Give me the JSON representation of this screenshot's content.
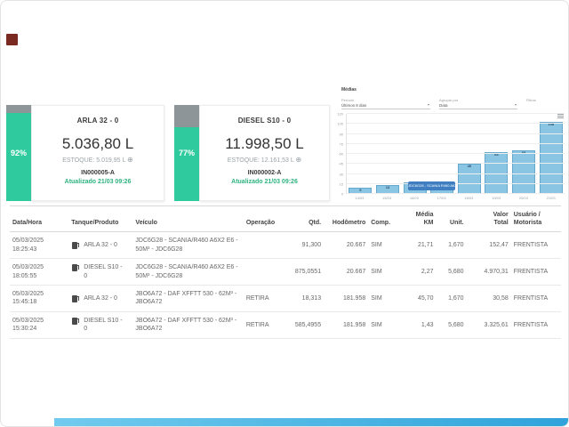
{
  "corner_marker": {
    "color": "#7b2a22"
  },
  "cards": [
    {
      "title": "ARLA 32 - 0",
      "percent": 92,
      "percent_label": "92%",
      "value": "5.036,80 L",
      "stock_label": "ESTOQUE:",
      "stock_value": "5.019,95 L",
      "stock_icon": "⊕",
      "code": "IN000005-A",
      "updated": "Atualizado 21/03 09:26",
      "gauge_color": "#2fcb9e",
      "gauge_empty_color": "#8e9598"
    },
    {
      "title": "DIESEL S10 - 0",
      "percent": 77,
      "percent_label": "77%",
      "value": "11.998,50 L",
      "stock_label": "ESTOQUE:",
      "stock_value": "12.161,53 L",
      "stock_icon": "⊕",
      "code": "IN000002-A",
      "updated": "Atualizado 21/03 09:26",
      "gauge_color": "#2fcb9e",
      "gauge_empty_color": "#8e9598"
    }
  ],
  "chart": {
    "title": "Médias",
    "filters": [
      {
        "label": "Período",
        "value": "Últimos 8 dias",
        "arrow": "▾"
      },
      {
        "label": "Agrupar por",
        "value": "Data",
        "arrow": "▾"
      }
    ],
    "extra_label": "Filtros",
    "highlight_badge": "JDC6G28 - SCANIA R460 A6X",
    "bar_color": "#8ac6e4",
    "bar_border_color": "#64a9cc",
    "badge_color": "#3f7fc1"
  },
  "chart_data": {
    "type": "bar",
    "categories": [
      "14/03",
      "15/03",
      "16/03",
      "17/03",
      "18/03",
      "19/03",
      "20/03",
      "21/03"
    ],
    "values": [
      9,
      13,
      18,
      17,
      45,
      63,
      65,
      108
    ],
    "title": "Médias",
    "xlabel": "",
    "ylabel": "",
    "ylim": [
      0,
      120
    ],
    "yticks": [
      0,
      15,
      30,
      45,
      60,
      75,
      90,
      105,
      120
    ],
    "grid": true,
    "legend": false
  },
  "table": {
    "columns": [
      "Data/Hora",
      "Tanque/Produto",
      "Veículo",
      "Operação",
      "Qtd.",
      "Hodômetro",
      "Comp.",
      "Média KM",
      "Unit.",
      "Valor Total",
      "Usuário / Motorista"
    ],
    "rows": [
      {
        "date": "05/03/2025",
        "time": "18:25:43",
        "product": "ARLA 32 - 0",
        "vehicle": "JDC6G28 - SCANIA/R460 A6X2 E6 - 50M³ - JDC6G28",
        "operation": "",
        "qty": "91,300",
        "odometer": "20.667",
        "comp": "SIM",
        "avg_km": "21,71",
        "unit": "1,670",
        "total": "152,47",
        "user": "FRENTISTA"
      },
      {
        "date": "05/03/2025",
        "time": "18:05:55",
        "product": "DIESEL S10 - 0",
        "vehicle": "JDC6G28 - SCANIA/R460 A6X2 E6 - 50M³ - JDC6G28",
        "operation": "",
        "qty": "875,0551",
        "odometer": "20.667",
        "comp": "SIM",
        "avg_km": "2,27",
        "unit": "5,680",
        "total": "4.970,31",
        "user": "FRENTISTA"
      },
      {
        "date": "05/03/2025",
        "time": "15:45:18",
        "product": "ARLA 32 - 0",
        "vehicle": "JBO6A72 - DAF XFFTT 530 - 62M³ - JBO6A72",
        "operation": "RETIRA",
        "qty": "18,313",
        "odometer": "181.958",
        "comp": "SIM",
        "avg_km": "45,70",
        "unit": "1,670",
        "total": "30,58",
        "user": "FRENTISTA"
      },
      {
        "date": "05/03/2025",
        "time": "15:30:24",
        "product": "DIESEL S10 - 0",
        "vehicle": "JBO6A72 - DAF XFFTT 530 - 62M³ - JBO6A72",
        "operation": "RETIRA",
        "qty": "585,4955",
        "odometer": "181.958",
        "comp": "SIM",
        "avg_km": "1,43",
        "unit": "5,680",
        "total": "3.325,61",
        "user": "FRENTISTA"
      }
    ]
  },
  "footer": {
    "bar_color_start": "#72cbee",
    "bar_color_end": "#2fa3da"
  }
}
